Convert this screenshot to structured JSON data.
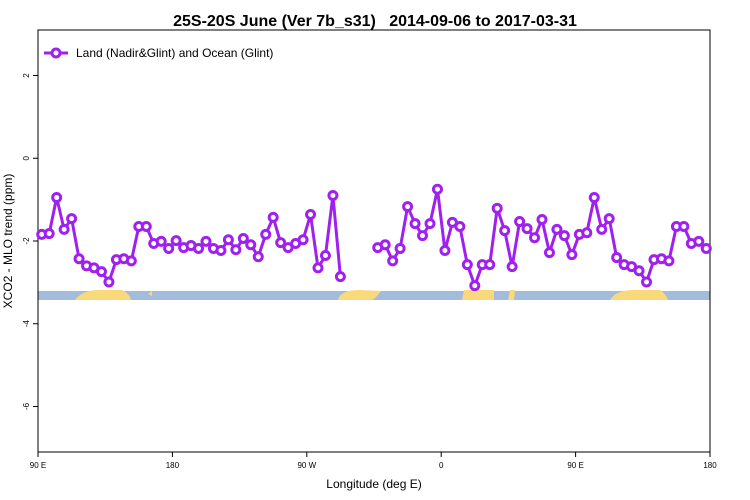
{
  "chart_data": {
    "type": "line",
    "title": "25S-20S June (Ver 7b_s31)   2014-09-06 to 2017-03-31",
    "xlabel": "Longitude (deg E)",
    "ylabel": "XCO2 - MLO trend (ppm)",
    "xlim": [
      90,
      540
    ],
    "ylim": [
      -7.1,
      3.1
    ],
    "xticks": [
      {
        "value": 90,
        "label": "90 E"
      },
      180,
      {
        "value": 270,
        "label": "90 W"
      },
      {
        "value": 360,
        "label": "0"
      },
      {
        "value": 450,
        "label": "90 E"
      },
      {
        "value": 540,
        "label": "180"
      }
    ],
    "yticks": [
      2,
      0,
      -2,
      -4,
      -6
    ],
    "legend": "top-left",
    "x": [
      92.5,
      97.5,
      102.5,
      107.5,
      112.5,
      117.5,
      122.5,
      127.5,
      132.5,
      137.5,
      142.5,
      147.5,
      152.5,
      157.5,
      162.5,
      167.5,
      172.5,
      177.5,
      182.5,
      187.5,
      192.5,
      197.5,
      202.5,
      207.5,
      212.5,
      217.5,
      222.5,
      227.5,
      232.5,
      237.5,
      242.5,
      247.5,
      252.5,
      257.5,
      262.5,
      267.5,
      272.5,
      277.5,
      282.5,
      287.5,
      292.5,
      297.5,
      302.5,
      307.5,
      312.5,
      317.5,
      322.5,
      327.5,
      332.5,
      337.5,
      342.5,
      347.5,
      352.5,
      357.5,
      362.5,
      367.5,
      372.5,
      377.5,
      382.5,
      387.5,
      392.5,
      397.5,
      402.5,
      407.5,
      412.5,
      417.5,
      422.5,
      427.5,
      432.5,
      437.5,
      442.5,
      447.5,
      452.5,
      457.5,
      462.5,
      467.5,
      472.5,
      477.5,
      482.5,
      487.5,
      492.5,
      497.5,
      502.5,
      507.5,
      512.5,
      517.5,
      522.5,
      527.5,
      532.5,
      537.5
    ],
    "series": [
      {
        "name": "Land (Nadir&Glint) and Ocean (Glint)",
        "color": "#a020f0",
        "values": [
          -1.84,
          -1.82,
          -0.95,
          -1.72,
          -1.46,
          -2.43,
          -2.6,
          -2.65,
          -2.74,
          -2.99,
          -2.45,
          -2.43,
          -2.48,
          -1.65,
          -1.65,
          -2.06,
          -2.01,
          -2.18,
          -1.99,
          -2.16,
          -2.11,
          -2.18,
          -2.01,
          -2.18,
          -2.23,
          -1.97,
          -2.21,
          -1.94,
          -2.09,
          -2.38,
          -1.84,
          -1.43,
          -2.04,
          -2.16,
          -2.06,
          -1.97,
          -1.36,
          -2.65,
          -2.35,
          -0.9,
          -2.86,
          null,
          null,
          null,
          null,
          -2.16,
          -2.09,
          -2.48,
          -2.18,
          -1.17,
          -1.58,
          -1.87,
          -1.58,
          -0.75,
          -2.23,
          -1.55,
          -1.65,
          -2.57,
          -3.08,
          -2.57,
          -2.57,
          -1.21,
          -1.75,
          -2.62,
          -1.53,
          -1.7,
          -1.92,
          -1.48,
          -2.28,
          -1.72,
          -1.87,
          -2.33,
          -1.84,
          -1.8,
          -0.95,
          -1.72,
          -1.46,
          -2.4,
          -2.57,
          -2.62,
          -2.72,
          -2.99,
          -2.45,
          -2.43,
          -2.48,
          -1.65,
          -1.65,
          -2.06,
          -2.01,
          -2.18
        ]
      }
    ]
  }
}
